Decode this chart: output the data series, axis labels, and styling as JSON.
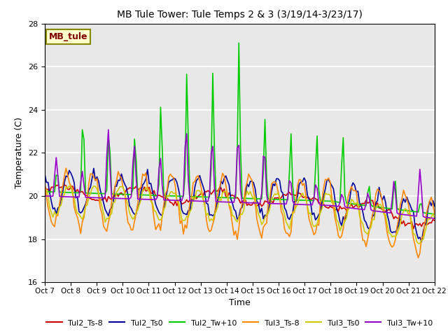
{
  "title": "MB Tule Tower: Tule Temps 2 & 3 (3/19/14-3/23/17)",
  "xlabel": "Time",
  "ylabel": "Temperature (C)",
  "ylim": [
    16,
    28
  ],
  "yticks": [
    16,
    18,
    20,
    22,
    24,
    26,
    28
  ],
  "xlim": [
    0,
    15
  ],
  "xtick_labels": [
    "Oct 7",
    "Oct 8",
    "Oct 9",
    "Oct 10",
    "Oct 11",
    "Oct 12",
    "Oct 13",
    "Oct 14",
    "Oct 15",
    "Oct 16",
    "Oct 17",
    "Oct 18",
    "Oct 19",
    "Oct 20",
    "Oct 21",
    "Oct 22"
  ],
  "annotation_text": "MB_tule",
  "annotation_color": "#800000",
  "annotation_bg": "#ffffcc",
  "annotation_border": "#888800",
  "legend_colors": [
    "#cc0000",
    "#000099",
    "#00cc00",
    "#ff8800",
    "#cccc00",
    "#9900cc"
  ],
  "legend_labels": [
    "Tul2_Ts-8",
    "Tul2_Ts0",
    "Tul2_Tw+10",
    "Tul3_Ts-8",
    "Tul3_Ts0",
    "Tul3_Tw+10"
  ]
}
